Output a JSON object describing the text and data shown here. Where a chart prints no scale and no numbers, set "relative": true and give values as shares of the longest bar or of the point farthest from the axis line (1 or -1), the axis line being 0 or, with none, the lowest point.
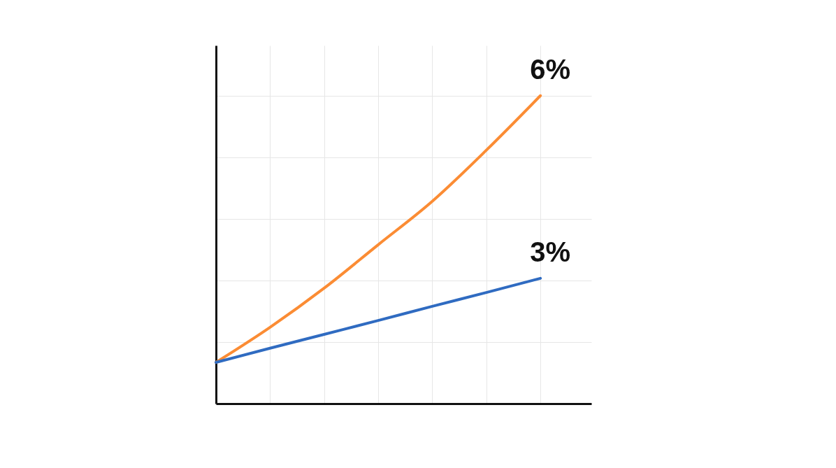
{
  "chart_data": {
    "type": "line",
    "relative": true,
    "grid": true,
    "marker": "none",
    "categories": [
      null,
      null,
      null,
      null,
      null,
      null,
      null
    ],
    "series": [
      {
        "name": "6%",
        "color": "#fb8c34",
        "values": [
          0.134,
          0.248,
          0.375,
          0.516,
          0.657,
          0.823,
          1
        ]
      },
      {
        "name": "3%",
        "color": "#2f6bc1",
        "values": [
          0.134,
          0.18,
          0.225,
          0.27,
          0.316,
          0.361,
          0.407
        ]
      }
    ]
  }
}
